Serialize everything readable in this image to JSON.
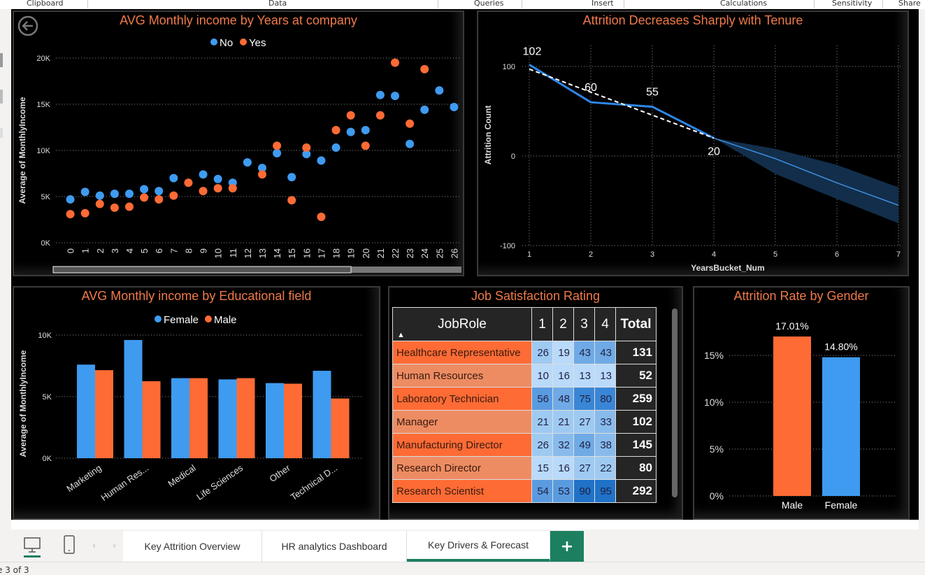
{
  "ribbon": {
    "groups": [
      "Clipboard",
      "Data",
      "Queries",
      "Insert",
      "Calculations",
      "Sensitivity",
      "Share"
    ]
  },
  "colors": {
    "title": "#f07a4a",
    "blue": "#3f9bf0",
    "orange": "#fe6b35",
    "accent": "#1b7f60"
  },
  "scatter": {
    "title": "AVG Monthly income by Years at company",
    "back_icon": "back-arrow-icon",
    "chart_data": {
      "type": "scatter",
      "title": "AVG Monthly income by Years at company",
      "xlabel": "",
      "ylabel": "Average of MonthlyIncome",
      "ylim": [
        0,
        20000
      ],
      "yticks": [
        "0K",
        "5K",
        "10K",
        "15K",
        "20K"
      ],
      "x": [
        0,
        1,
        2,
        3,
        4,
        5,
        6,
        7,
        8,
        9,
        10,
        11,
        12,
        13,
        14,
        15,
        16,
        17,
        18,
        19,
        20,
        21,
        22,
        23,
        24,
        25,
        26
      ],
      "legend": [
        "No",
        "Yes"
      ],
      "legend_position": "top-center",
      "series": [
        {
          "name": "No",
          "points": [
            [
              0,
              4700
            ],
            [
              1,
              5500
            ],
            [
              2,
              5100
            ],
            [
              3,
              5300
            ],
            [
              4,
              5300
            ],
            [
              5,
              5800
            ],
            [
              6,
              5600
            ],
            [
              7,
              7000
            ],
            [
              9,
              7400
            ],
            [
              10,
              6900
            ],
            [
              11,
              6500
            ],
            [
              12,
              8700
            ],
            [
              13,
              8100
            ],
            [
              14,
              9700
            ],
            [
              15,
              7100
            ],
            [
              16,
              9600
            ],
            [
              17,
              8900
            ],
            [
              18,
              10300
            ],
            [
              19,
              12000
            ],
            [
              20,
              12200
            ],
            [
              21,
              16000
            ],
            [
              22,
              15900
            ],
            [
              23,
              10700
            ],
            [
              24,
              14400
            ],
            [
              25,
              16500
            ],
            [
              26,
              14700
            ]
          ]
        },
        {
          "name": "Yes",
          "points": [
            [
              0,
              3100
            ],
            [
              1,
              3200
            ],
            [
              2,
              4200
            ],
            [
              3,
              3800
            ],
            [
              4,
              3900
            ],
            [
              5,
              4900
            ],
            [
              6,
              4700
            ],
            [
              7,
              5100
            ],
            [
              8,
              6500
            ],
            [
              9,
              5600
            ],
            [
              10,
              5900
            ],
            [
              11,
              5900
            ],
            [
              13,
              7400
            ],
            [
              14,
              10500
            ],
            [
              15,
              4600
            ],
            [
              16,
              10300
            ],
            [
              17,
              2800
            ],
            [
              18,
              12200
            ],
            [
              19,
              13800
            ],
            [
              20,
              10500
            ],
            [
              21,
              13800
            ],
            [
              22,
              19500
            ],
            [
              23,
              12900
            ],
            [
              24,
              18800
            ]
          ]
        }
      ]
    }
  },
  "forecast": {
    "title": "Attrition Decreases Sharply with Tenure",
    "chart_data": {
      "type": "line",
      "title": "Attrition Decreases Sharply with Tenure",
      "xlabel": "YearsBucket_Num",
      "ylabel": "Attrition Count",
      "xlim": [
        1,
        7
      ],
      "ylim": [
        -100,
        120
      ],
      "xticks": [
        1,
        2,
        3,
        4,
        5,
        6,
        7
      ],
      "yticks": [
        -100,
        0,
        100
      ],
      "series": [
        {
          "name": "Attrition Count",
          "x": [
            1,
            2,
            3,
            4
          ],
          "y": [
            102,
            60,
            55,
            20
          ],
          "labels": [
            "102",
            "60",
            "55",
            "20"
          ]
        },
        {
          "name": "Trend",
          "style": "dashed",
          "x": [
            1,
            4
          ],
          "y": [
            97,
            20
          ]
        },
        {
          "name": "Forecast",
          "x": [
            4,
            5,
            6,
            7
          ],
          "y": [
            20,
            -3,
            -30,
            -55
          ],
          "upper": [
            20,
            8,
            -10,
            -35
          ],
          "lower": [
            20,
            -20,
            -48,
            -75
          ]
        }
      ]
    }
  },
  "edu": {
    "title": "AVG Monthly income by Educational field",
    "chart_data": {
      "type": "bar",
      "title": "AVG Monthly income by Educational field",
      "xlabel": "",
      "ylabel": "Average of MonthlyIncome",
      "ylim": [
        0,
        10000
      ],
      "yticks": [
        "0K",
        "5K",
        "10K"
      ],
      "categories": [
        "Marketing",
        "Human Res...",
        "Medical",
        "Life Sciences",
        "Other",
        "Technical D..."
      ],
      "legend_position": "top-center",
      "series": [
        {
          "name": "Female",
          "values": [
            7600,
            9600,
            6500,
            6400,
            6100,
            7100
          ]
        },
        {
          "name": "Male",
          "values": [
            7150,
            6250,
            6500,
            6500,
            6050,
            4850
          ]
        }
      ]
    }
  },
  "matrix": {
    "title": "Job Satisfaction Rating",
    "header": {
      "role": "JobRole",
      "cols": [
        "1",
        "2",
        "3",
        "4"
      ],
      "total": "Total"
    },
    "sort_icon": "sort-up-icon",
    "rows": [
      {
        "role": "Healthcare Representative",
        "vals": [
          26,
          19,
          43,
          43
        ],
        "total": 131
      },
      {
        "role": "Human Resources",
        "vals": [
          10,
          16,
          13,
          13
        ],
        "total": 52
      },
      {
        "role": "Laboratory Technician",
        "vals": [
          56,
          48,
          75,
          80
        ],
        "total": 259
      },
      {
        "role": "Manager",
        "vals": [
          21,
          21,
          27,
          33
        ],
        "total": 102
      },
      {
        "role": "Manufacturing Director",
        "vals": [
          26,
          32,
          49,
          38
        ],
        "total": 145
      },
      {
        "role": "Research Director",
        "vals": [
          15,
          16,
          27,
          22
        ],
        "total": 80
      },
      {
        "role": "Research Scientist",
        "vals": [
          54,
          53,
          90,
          95
        ],
        "total": 292
      }
    ]
  },
  "gender": {
    "title": "Attrition Rate by Gender",
    "chart_data": {
      "type": "bar",
      "title": "Attrition Rate by Gender",
      "categories": [
        "Male",
        "Female"
      ],
      "values": [
        17.01,
        14.8
      ],
      "labels": [
        "17.01%",
        "14.80%"
      ],
      "ylim": [
        0,
        20
      ],
      "yticks": [
        "0%",
        "5%",
        "10%",
        "15%"
      ]
    }
  },
  "tabs": {
    "items": [
      "Key Attrition Overview",
      "HR analytics Dashboard",
      "Key Drivers & Forecast"
    ],
    "active": 2,
    "add": "+"
  },
  "status": {
    "page": "e 3 of 3"
  }
}
